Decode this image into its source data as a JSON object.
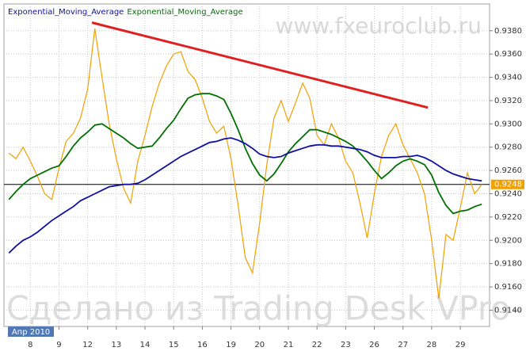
{
  "chart_data": {
    "type": "line",
    "watermark_top": "www.fxeuroclub.ru",
    "watermark_bottom": "Сделано из Trading Desk VPro-",
    "x_period": "Апр 2010",
    "x": [
      -0.75,
      -0.5,
      -0.25,
      0,
      0.25,
      0.5,
      0.75,
      1,
      1.25,
      1.5,
      1.75,
      2,
      2.25,
      2.5,
      2.75,
      3,
      3.25,
      3.5,
      3.75,
      4,
      4.25,
      4.5,
      4.75,
      5,
      5.25,
      5.5,
      5.75,
      6,
      6.25,
      6.5,
      6.75,
      7,
      7.25,
      7.5,
      7.75,
      8,
      8.25,
      8.5,
      8.75,
      9,
      9.25,
      9.5,
      9.75,
      10,
      10.25,
      10.5,
      10.75,
      11,
      11.25,
      11.5,
      11.75,
      12,
      12.25,
      12.5,
      12.75,
      13,
      13.25,
      13.5,
      13.75,
      14,
      14.25,
      14.5,
      14.75,
      15,
      15.25,
      15.5,
      15.75
    ],
    "xlim": [
      -0.92,
      16.02
    ],
    "xticks": [
      {
        "value": 0,
        "label": "8"
      },
      {
        "value": 1,
        "label": "9"
      },
      {
        "value": 2,
        "label": "12"
      },
      {
        "value": 3,
        "label": "13"
      },
      {
        "value": 4,
        "label": "14"
      },
      {
        "value": 5,
        "label": "15"
      },
      {
        "value": 6,
        "label": "16"
      },
      {
        "value": 7,
        "label": "19"
      },
      {
        "value": 8,
        "label": "20"
      },
      {
        "value": 9,
        "label": "21"
      },
      {
        "value": 10,
        "label": "22"
      },
      {
        "value": 11,
        "label": "23"
      },
      {
        "value": 12,
        "label": "26"
      },
      {
        "value": 13,
        "label": "27"
      },
      {
        "value": 14,
        "label": "28"
      },
      {
        "value": 15,
        "label": "29"
      }
    ],
    "ylim": [
      0.9126,
      0.9403
    ],
    "yticks": [
      {
        "value": 0.914,
        "label": "0.9140"
      },
      {
        "value": 0.916,
        "label": "0.9160"
      },
      {
        "value": 0.918,
        "label": "0.9180"
      },
      {
        "value": 0.92,
        "label": "0.9200"
      },
      {
        "value": 0.922,
        "label": "0.9220"
      },
      {
        "value": 0.924,
        "label": "0.9240"
      },
      {
        "value": 0.926,
        "label": "0.9260"
      },
      {
        "value": 0.928,
        "label": "0.9280"
      },
      {
        "value": 0.93,
        "label": "0.9300"
      },
      {
        "value": 0.932,
        "label": "0.9320"
      },
      {
        "value": 0.934,
        "label": "0.9340"
      },
      {
        "value": 0.936,
        "label": "0.9360"
      },
      {
        "value": 0.938,
        "label": "0.9380"
      }
    ],
    "grid": true,
    "last_price": 0.9248,
    "last_price_color": "#f0a000",
    "series": [
      {
        "name": "Exponential_Moving_Average",
        "color": "#1010a0",
        "values": [
          0.9189,
          0.9195,
          0.92,
          0.9203,
          0.9207,
          0.9212,
          0.9217,
          0.9221,
          0.9225,
          0.9229,
          0.9234,
          0.9237,
          0.924,
          0.9243,
          0.9246,
          0.9247,
          0.9248,
          0.9248,
          0.9249,
          0.9252,
          0.9256,
          0.926,
          0.9264,
          0.9268,
          0.9272,
          0.9275,
          0.9278,
          0.9281,
          0.9284,
          0.9285,
          0.9287,
          0.9288,
          0.9286,
          0.9283,
          0.9279,
          0.9274,
          0.9272,
          0.9271,
          0.9272,
          0.9275,
          0.9277,
          0.9279,
          0.9281,
          0.9282,
          0.9282,
          0.9281,
          0.9281,
          0.928,
          0.9279,
          0.9278,
          0.9276,
          0.9273,
          0.9271,
          0.9271,
          0.9271,
          0.9272,
          0.9272,
          0.9273,
          0.9271,
          0.9268,
          0.9264,
          0.926,
          0.9257,
          0.9255,
          0.9253,
          0.9252,
          0.9251
        ]
      },
      {
        "name": "Exponential_Moving_Average",
        "color": "#007000",
        "values": [
          0.9235,
          0.9242,
          0.9248,
          0.9253,
          0.9256,
          0.9259,
          0.9262,
          0.9264,
          0.9272,
          0.9281,
          0.9288,
          0.9293,
          0.9299,
          0.93,
          0.9296,
          0.9292,
          0.9288,
          0.9283,
          0.9279,
          0.928,
          0.9281,
          0.9288,
          0.9296,
          0.9303,
          0.9313,
          0.9322,
          0.9325,
          0.9326,
          0.9326,
          0.9324,
          0.9321,
          0.9309,
          0.9295,
          0.9279,
          0.9266,
          0.9256,
          0.9251,
          0.9257,
          0.9266,
          0.9276,
          0.9283,
          0.9289,
          0.9295,
          0.9295,
          0.9293,
          0.9291,
          0.9288,
          0.9285,
          0.9281,
          0.9275,
          0.9268,
          0.926,
          0.9253,
          0.9258,
          0.9264,
          0.9268,
          0.927,
          0.9268,
          0.9265,
          0.9256,
          0.9241,
          0.923,
          0.9223,
          0.9225,
          0.9226,
          0.9229,
          0.9231
        ]
      },
      {
        "color": "#f0a000",
        "values": [
          0.9275,
          0.927,
          0.928,
          0.9268,
          0.9255,
          0.924,
          0.9235,
          0.9262,
          0.9285,
          0.9292,
          0.9305,
          0.933,
          0.9382,
          0.934,
          0.93,
          0.927,
          0.9245,
          0.9232,
          0.9268,
          0.929,
          0.9315,
          0.9335,
          0.935,
          0.936,
          0.9362,
          0.9345,
          0.9338,
          0.9322,
          0.9302,
          0.9292,
          0.9298,
          0.927,
          0.923,
          0.9185,
          0.9172,
          0.9215,
          0.9265,
          0.9305,
          0.932,
          0.9302,
          0.9318,
          0.9335,
          0.9322,
          0.929,
          0.9282,
          0.93,
          0.9288,
          0.9268,
          0.9258,
          0.9232,
          0.9202,
          0.924,
          0.9272,
          0.929,
          0.93,
          0.9282,
          0.927,
          0.9258,
          0.924,
          0.92,
          0.915,
          0.9205,
          0.92,
          0.9228,
          0.9258,
          0.924,
          0.9248
        ]
      }
    ],
    "trendline": {
      "x": [
        2.15,
        13.87
      ],
      "values": [
        0.9387,
        0.9314
      ],
      "color": "#e02020"
    }
  }
}
